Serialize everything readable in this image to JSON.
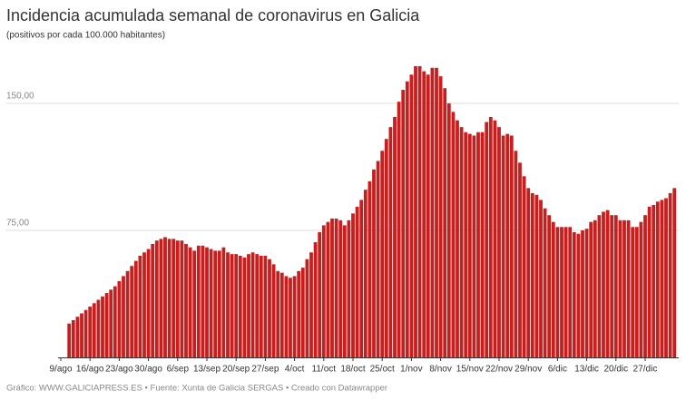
{
  "chart_data": {
    "type": "bar",
    "title": "Incidencia acumulada semanal de coronavirus en Galicia",
    "subtitle": "(positivos por cada 100.000 habitantes)",
    "source": "Gráfico: WWW.GALICIAPRESS.ES • Fuente: Xunta de Galicia SERGAS • Creado con Datawrapper",
    "color": "#c81e1e",
    "grid": true,
    "ylim": [
      0,
      180
    ],
    "yticks": [
      {
        "value": 75,
        "label": "75,00"
      },
      {
        "value": 150,
        "label": "150,00"
      }
    ],
    "categories": [
      "9/ago",
      null,
      null,
      null,
      null,
      null,
      null,
      "16/ago",
      null,
      null,
      null,
      null,
      null,
      null,
      "23/ago",
      null,
      null,
      null,
      null,
      null,
      null,
      "30/ago",
      null,
      null,
      null,
      null,
      null,
      null,
      "6/sep",
      null,
      null,
      null,
      null,
      null,
      null,
      "13/sep",
      null,
      null,
      null,
      null,
      null,
      null,
      "20/sep",
      null,
      null,
      null,
      null,
      null,
      null,
      "27/sep",
      null,
      null,
      null,
      null,
      null,
      null,
      "4/oct",
      null,
      null,
      null,
      null,
      null,
      null,
      "11/oct",
      null,
      null,
      null,
      null,
      null,
      null,
      "18/oct",
      null,
      null,
      null,
      null,
      null,
      null,
      "25/oct",
      null,
      null,
      null,
      null,
      null,
      null,
      "1/nov",
      null,
      null,
      null,
      null,
      null,
      null,
      "8/nov",
      null,
      null,
      null,
      null,
      null,
      null,
      "15/nov",
      null,
      null,
      null,
      null,
      null,
      null,
      "22/nov",
      null,
      null,
      null,
      null,
      null,
      null,
      "29/nov",
      null,
      null,
      null,
      null,
      null,
      null,
      "6/dic",
      null,
      null,
      null,
      null,
      null,
      null,
      "13/dic",
      null,
      null,
      null,
      null,
      null,
      null,
      "20/dic",
      null,
      null,
      null,
      null,
      null,
      null,
      "27/dic",
      null,
      null,
      null,
      null,
      null,
      null,
      null
    ],
    "values": [
      null,
      null,
      20,
      22,
      24,
      26,
      28,
      30,
      32,
      34,
      36,
      38,
      40,
      42,
      45,
      48,
      51,
      54,
      57,
      60,
      62,
      64,
      67,
      69,
      70,
      71,
      70,
      70,
      69,
      69,
      67,
      65,
      63,
      66,
      66,
      65,
      64,
      63,
      63,
      65,
      62,
      61,
      61,
      60,
      59,
      61,
      62,
      61,
      60,
      60,
      58,
      55,
      51,
      50,
      48,
      47,
      48,
      51,
      53,
      58,
      62,
      68,
      74,
      78,
      80,
      82,
      82,
      81,
      78,
      81,
      85,
      89,
      93,
      99,
      104,
      111,
      116,
      122,
      129,
      136,
      142,
      151,
      158,
      163,
      167,
      172,
      172,
      169,
      167,
      171,
      171,
      166,
      159,
      150,
      145,
      140,
      136,
      133,
      132,
      131,
      133,
      133,
      139,
      142,
      140,
      136,
      131,
      132,
      131,
      122,
      115,
      107,
      100,
      97,
      96,
      93,
      88,
      84,
      80,
      77,
      77,
      77,
      77,
      74,
      73,
      75,
      76,
      80,
      81,
      84,
      86,
      87,
      84,
      84,
      81,
      81,
      81,
      77,
      77,
      80,
      84,
      89,
      90,
      92,
      93,
      94,
      97,
      100
    ]
  }
}
